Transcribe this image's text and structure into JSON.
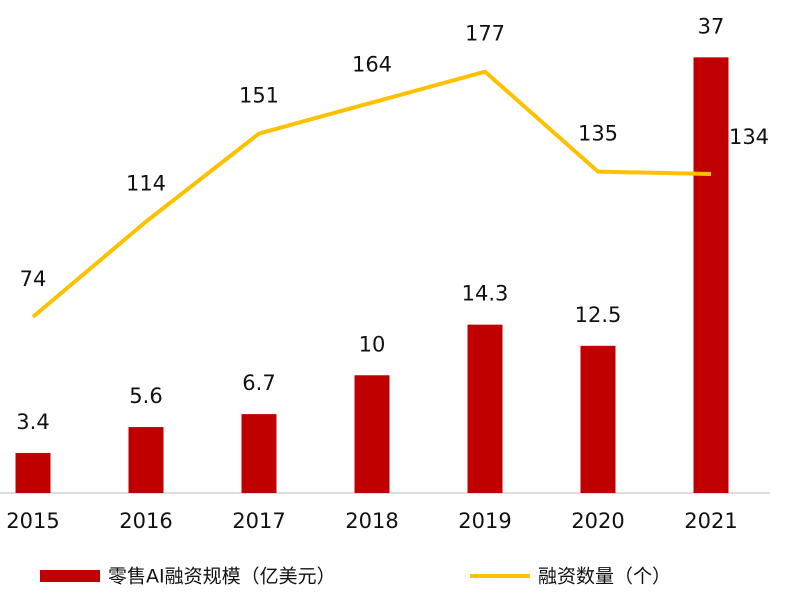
{
  "chart_data": {
    "type": "bar-line",
    "categories": [
      "2015",
      "2016",
      "2017",
      "2018",
      "2019",
      "2020",
      "2021"
    ],
    "series": [
      {
        "name": "零售AI融资规模（亿美元）",
        "type": "bar",
        "color": "#c00000",
        "values": [
          3.4,
          5.6,
          6.7,
          10,
          14.3,
          12.5,
          37
        ],
        "value_labels": [
          "3.4",
          "5.6",
          "6.7",
          "10",
          "14.3",
          "12.5",
          "37"
        ]
      },
      {
        "name": "融资数量（个）",
        "type": "line",
        "axis": "y2",
        "color": "#ffc000",
        "values": [
          74,
          114,
          151,
          164,
          177,
          135,
          134
        ]
      }
    ],
    "ylim": [
      0,
      37.2
    ],
    "y2lim": [
      0,
      184
    ]
  }
}
